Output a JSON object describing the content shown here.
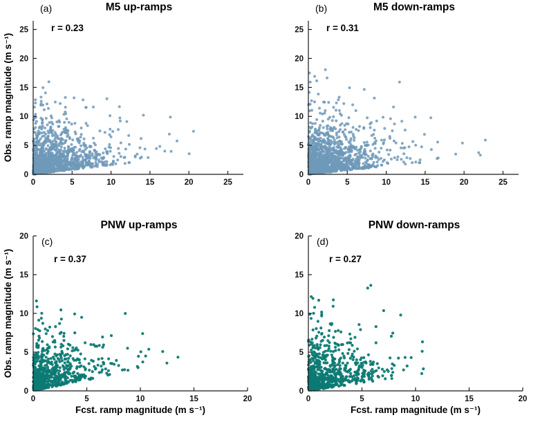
{
  "figure": {
    "background": "#ffffff"
  },
  "chart_data": [
    {
      "panel_label": "(a)",
      "title": "M5 up-ramps",
      "annotation": "r = 0.23",
      "type": "scatter",
      "xlabel": "",
      "ylabel": "Obs. ramp magnitude (m s⁻¹)",
      "xlim": [
        0,
        27
      ],
      "ylim": [
        0,
        26.5
      ],
      "xticks": [
        0,
        5,
        10,
        15,
        20,
        25
      ],
      "yticks": [
        0,
        5,
        10,
        15,
        20,
        25
      ],
      "point_color": "#6e99b9",
      "point_opacity": 0.85,
      "point_radius": 2.0,
      "axis_color": "#1a1a1a",
      "n_points": 1300,
      "distribution": {
        "seed": 11,
        "x_scale": 3.1,
        "y_scale": 2.5,
        "slope": 0.16,
        "x_max": 21.3,
        "y_max": 16.0
      }
    },
    {
      "panel_label": "(b)",
      "title": "M5 down-ramps",
      "annotation": "r = 0.31",
      "type": "scatter",
      "xlabel": "",
      "ylabel": "",
      "xlim": [
        0,
        27
      ],
      "ylim": [
        0,
        26.5
      ],
      "xticks": [
        0,
        5,
        10,
        15,
        20,
        25
      ],
      "yticks": [
        0,
        5,
        10,
        15,
        20,
        25
      ],
      "point_color": "#6e99b9",
      "point_opacity": 0.85,
      "point_radius": 2.0,
      "axis_color": "#1a1a1a",
      "n_points": 1300,
      "distribution": {
        "seed": 23,
        "x_scale": 3.4,
        "y_scale": 2.7,
        "slope": 0.14,
        "x_max": 25.3,
        "y_max": 19.3
      }
    },
    {
      "panel_label": "(c)",
      "title": "PNW up-ramps",
      "annotation": "r = 0.37",
      "type": "scatter",
      "xlabel": "Fcst. ramp magnitude (m s⁻¹)",
      "ylabel": "Obs. ramp magnitude (m s⁻¹)",
      "xlim": [
        0,
        20
      ],
      "ylim": [
        0,
        20
      ],
      "xticks": [
        0,
        5,
        10,
        15,
        20
      ],
      "yticks": [
        0,
        5,
        10,
        15,
        20
      ],
      "point_color": "#0d7a74",
      "point_opacity": 0.95,
      "point_radius": 2.1,
      "axis_color": "#1a1a1a",
      "n_points": 650,
      "distribution": {
        "seed": 37,
        "x_scale": 2.1,
        "y_scale": 2.1,
        "slope": 0.28,
        "x_max": 13.9,
        "y_max": 11.8
      }
    },
    {
      "panel_label": "(d)",
      "title": "PNW down-ramps",
      "annotation": "r = 0.27",
      "type": "scatter",
      "xlabel": "Fcst. ramp magnitude (m s⁻¹)",
      "ylabel": "",
      "xlim": [
        0,
        20
      ],
      "ylim": [
        0,
        20
      ],
      "xticks": [
        0,
        5,
        10,
        15,
        20
      ],
      "yticks": [
        0,
        5,
        10,
        15,
        20
      ],
      "point_color": "#0d7a74",
      "point_opacity": 0.95,
      "point_radius": 2.1,
      "axis_color": "#1a1a1a",
      "n_points": 700,
      "distribution": {
        "seed": 51,
        "x_scale": 2.2,
        "y_scale": 2.3,
        "slope": 0.2,
        "x_max": 11.3,
        "y_max": 14.2
      }
    }
  ]
}
